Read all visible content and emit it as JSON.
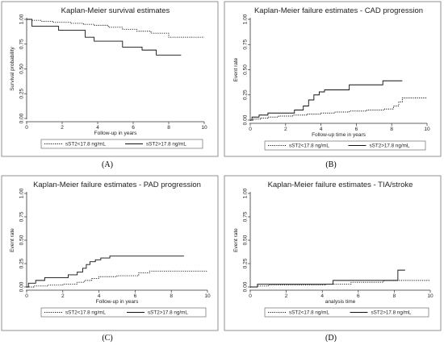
{
  "chart_data": [
    {
      "type": "line",
      "title": "Kaplan-Meier survival estimates",
      "xlabel": "Follow-up in years",
      "ylabel": "Survival probability",
      "xlim": [
        0,
        10
      ],
      "ylim": [
        0,
        1
      ],
      "xticks": [
        "0",
        "2",
        "4",
        "6",
        "8",
        "10"
      ],
      "yticks": [
        "0.00",
        "0.25",
        "0.50",
        "0.75",
        "1.00"
      ],
      "series": [
        {
          "name": "sST2<17.8 ng/mL",
          "style": "dotted",
          "x": [
            0,
            0.3,
            0.8,
            1.5,
            2.5,
            3.2,
            3.8,
            4.6,
            5.4,
            6.2,
            7.0,
            8.0,
            10.0
          ],
          "y": [
            1.0,
            0.99,
            0.98,
            0.97,
            0.96,
            0.95,
            0.94,
            0.92,
            0.9,
            0.88,
            0.86,
            0.82,
            0.82
          ]
        },
        {
          "name": "sST2>17.8 ng/mL",
          "style": "solid",
          "x": [
            0,
            0.3,
            1.8,
            3.3,
            3.8,
            5.4,
            6.5,
            7.3,
            8.7
          ],
          "y": [
            1.0,
            0.93,
            0.89,
            0.82,
            0.78,
            0.72,
            0.69,
            0.64,
            0.64
          ]
        }
      ],
      "legend_position": "bottom",
      "panel_label": "(A)"
    },
    {
      "type": "line",
      "title": "Kaplan-Meier failure estimates - CAD progression",
      "xlabel": "Follow-up time in years",
      "ylabel": "Event rate",
      "xlim": [
        0,
        10
      ],
      "ylim": [
        0,
        1
      ],
      "xticks": [
        "0",
        "2",
        "4",
        "6",
        "8",
        "10"
      ],
      "yticks": [
        "0.00",
        "0.25",
        "0.50",
        "0.75",
        "1.00"
      ],
      "series": [
        {
          "name": "sST2<17.8 ng/mL",
          "style": "dotted",
          "x": [
            0,
            0.2,
            0.6,
            1.0,
            1.6,
            2.4,
            3.2,
            4.0,
            4.8,
            5.6,
            6.6,
            7.6,
            8.1,
            8.4,
            8.6,
            10.0
          ],
          "y": [
            0.0,
            0.01,
            0.02,
            0.03,
            0.04,
            0.05,
            0.06,
            0.07,
            0.08,
            0.09,
            0.1,
            0.11,
            0.14,
            0.18,
            0.22,
            0.22
          ]
        },
        {
          "name": "sST2>17.8 ng/mL",
          "style": "solid",
          "x": [
            0,
            0.1,
            0.5,
            1.0,
            2.5,
            3.0,
            3.3,
            3.6,
            3.9,
            4.2,
            5.6,
            7.5,
            8.6
          ],
          "y": [
            0.0,
            0.03,
            0.05,
            0.07,
            0.1,
            0.14,
            0.2,
            0.25,
            0.28,
            0.3,
            0.35,
            0.39,
            0.39
          ]
        }
      ],
      "legend_position": "bottom",
      "panel_label": "(B)"
    },
    {
      "type": "line",
      "title": "Kaplan-Meier failure estimates - PAD progression",
      "xlabel": "Follow-up in years",
      "ylabel": "Event rate",
      "xlim": [
        0,
        10
      ],
      "ylim": [
        0,
        1
      ],
      "xticks": [
        "0",
        "2",
        "4",
        "6",
        "8",
        "10"
      ],
      "yticks": [
        "0.00",
        "0.25",
        "0.50",
        "0.75",
        "1.00"
      ],
      "series": [
        {
          "name": "sST2<17.8 ng/mL",
          "style": "dotted",
          "x": [
            0,
            0.4,
            1.2,
            2.0,
            2.8,
            3.2,
            3.6,
            4.0,
            5.0,
            6.2,
            6.8,
            10.0
          ],
          "y": [
            0.0,
            0.01,
            0.02,
            0.03,
            0.05,
            0.07,
            0.09,
            0.11,
            0.12,
            0.15,
            0.17,
            0.17
          ]
        },
        {
          "name": "sST2>17.8 ng/mL",
          "style": "solid",
          "x": [
            0,
            0.1,
            0.5,
            1.0,
            2.3,
            2.8,
            3.1,
            3.3,
            3.5,
            3.8,
            4.1,
            4.6,
            8.7
          ],
          "y": [
            0.0,
            0.04,
            0.07,
            0.1,
            0.13,
            0.16,
            0.2,
            0.24,
            0.27,
            0.29,
            0.31,
            0.33,
            0.33
          ]
        }
      ],
      "legend_position": "bottom",
      "panel_label": "(C)"
    },
    {
      "type": "line",
      "title": "Kaplan-Meier failure estimates - TIA/stroke",
      "xlabel": "analysis time",
      "ylabel": "Event rate",
      "xlim": [
        0,
        10
      ],
      "ylim": [
        0,
        1
      ],
      "xticks": [
        "0",
        "2",
        "4",
        "6",
        "8",
        "10"
      ],
      "yticks": [
        "0.00",
        "0.25",
        "0.50",
        "0.75",
        "1.00"
      ],
      "series": [
        {
          "name": "sST2<17.8 ng/mL",
          "style": "dotted",
          "x": [
            0,
            0.4,
            1.0,
            4.2,
            5.6,
            7.4,
            10.0
          ],
          "y": [
            0.0,
            0.01,
            0.02,
            0.03,
            0.05,
            0.07,
            0.07
          ]
        },
        {
          "name": "sST2>17.8 ng/mL",
          "style": "solid",
          "x": [
            0,
            0.4,
            4.6,
            8.2,
            8.6
          ],
          "y": [
            0.0,
            0.03,
            0.07,
            0.18,
            0.18
          ]
        }
      ],
      "legend_position": "bottom",
      "panel_label": "(D)"
    }
  ]
}
